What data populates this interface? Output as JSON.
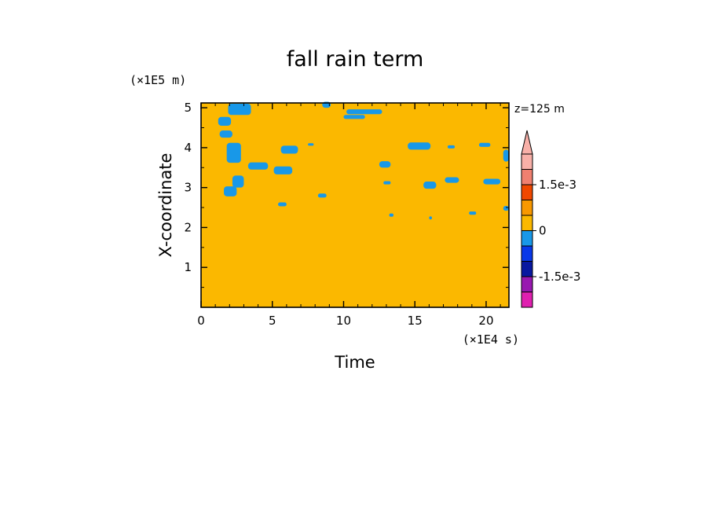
{
  "chart_data": {
    "type": "heatmap",
    "title": "fall rain term",
    "xlabel": "Time",
    "ylabel": "X-coordinate",
    "x_scale_label": "(×1E4 s)",
    "y_scale_label": "(×1E5 m)",
    "annotation": "z=125 m",
    "xlim": [
      0,
      21.6
    ],
    "ylim": [
      0,
      5.12
    ],
    "x_ticks": [
      {
        "value": 0,
        "label": "0"
      },
      {
        "value": 5,
        "label": "5"
      },
      {
        "value": 10,
        "label": "10"
      },
      {
        "value": 15,
        "label": "15"
      },
      {
        "value": 20,
        "label": "20"
      }
    ],
    "y_ticks": [
      {
        "value": 1,
        "label": "1"
      },
      {
        "value": 2,
        "label": "2"
      },
      {
        "value": 3,
        "label": "3"
      },
      {
        "value": 4,
        "label": "4"
      },
      {
        "value": 5,
        "label": "5"
      }
    ],
    "background_level": {
      "range": [
        0,
        0.0005
      ],
      "color": "#fbb800"
    },
    "colorbar": {
      "levels": [
        {
          "range": [
            -0.002,
            -0.00175
          ],
          "color": "#e020b0"
        },
        {
          "range": [
            -0.00175,
            -0.0015
          ],
          "color": "#9818b0"
        },
        {
          "range": [
            -0.0015,
            -0.001
          ],
          "color": "#0818a0"
        },
        {
          "range": [
            -0.001,
            -0.0005
          ],
          "color": "#0838e8"
        },
        {
          "range": [
            -0.0005,
            0
          ],
          "color": "#1898e8"
        },
        {
          "range": [
            0,
            0.0005
          ],
          "color": "#fbb800"
        },
        {
          "range": [
            0.0005,
            0.001
          ],
          "color": "#f89800"
        },
        {
          "range": [
            0.001,
            0.0015
          ],
          "color": "#f04800"
        },
        {
          "range": [
            0.0015,
            0.00175
          ],
          "color": "#f08070"
        },
        {
          "range": [
            0.00175,
            0.002
          ],
          "color": "#f8b0a8"
        }
      ],
      "extend_max": true,
      "tick_labels": [
        {
          "value": 0.0015,
          "label": "1.5e-3"
        },
        {
          "value": 0,
          "label": "0"
        },
        {
          "value": -0.0015,
          "label": "-1.5e-3"
        }
      ]
    },
    "negative_patches": {
      "color": "#1898e8",
      "regions": [
        {
          "x": 1.9,
          "y": 4.82,
          "w": 1.6,
          "h": 0.28
        },
        {
          "x": 1.2,
          "y": 4.55,
          "w": 0.9,
          "h": 0.22
        },
        {
          "x": 1.3,
          "y": 4.25,
          "w": 0.9,
          "h": 0.18
        },
        {
          "x": 1.8,
          "y": 3.62,
          "w": 1.0,
          "h": 0.5
        },
        {
          "x": 3.3,
          "y": 3.45,
          "w": 1.4,
          "h": 0.18
        },
        {
          "x": 5.1,
          "y": 3.33,
          "w": 1.3,
          "h": 0.2
        },
        {
          "x": 5.6,
          "y": 3.85,
          "w": 1.2,
          "h": 0.2
        },
        {
          "x": 2.2,
          "y": 3.0,
          "w": 0.8,
          "h": 0.3
        },
        {
          "x": 1.6,
          "y": 2.78,
          "w": 0.9,
          "h": 0.25
        },
        {
          "x": 8.5,
          "y": 5.0,
          "w": 0.6,
          "h": 0.15
        },
        {
          "x": 10.2,
          "y": 4.84,
          "w": 2.5,
          "h": 0.12
        },
        {
          "x": 10.0,
          "y": 4.72,
          "w": 1.5,
          "h": 0.1
        },
        {
          "x": 14.5,
          "y": 3.95,
          "w": 1.6,
          "h": 0.18
        },
        {
          "x": 12.5,
          "y": 3.5,
          "w": 0.8,
          "h": 0.16
        },
        {
          "x": 15.6,
          "y": 2.97,
          "w": 0.9,
          "h": 0.18
        },
        {
          "x": 17.1,
          "y": 3.12,
          "w": 1.0,
          "h": 0.14
        },
        {
          "x": 19.8,
          "y": 3.08,
          "w": 1.2,
          "h": 0.14
        },
        {
          "x": 21.2,
          "y": 3.65,
          "w": 0.5,
          "h": 0.3
        },
        {
          "x": 19.5,
          "y": 4.02,
          "w": 0.8,
          "h": 0.1
        },
        {
          "x": 17.3,
          "y": 3.98,
          "w": 0.5,
          "h": 0.08
        },
        {
          "x": 8.2,
          "y": 2.75,
          "w": 0.6,
          "h": 0.1
        },
        {
          "x": 5.4,
          "y": 2.53,
          "w": 0.6,
          "h": 0.1
        },
        {
          "x": 13.2,
          "y": 2.27,
          "w": 0.3,
          "h": 0.08
        },
        {
          "x": 18.8,
          "y": 2.32,
          "w": 0.5,
          "h": 0.08
        },
        {
          "x": 21.2,
          "y": 2.42,
          "w": 0.5,
          "h": 0.12
        },
        {
          "x": 16.0,
          "y": 2.2,
          "w": 0.2,
          "h": 0.08
        },
        {
          "x": 7.5,
          "y": 4.05,
          "w": 0.4,
          "h": 0.06
        },
        {
          "x": 12.8,
          "y": 3.08,
          "w": 0.5,
          "h": 0.08
        }
      ]
    }
  }
}
